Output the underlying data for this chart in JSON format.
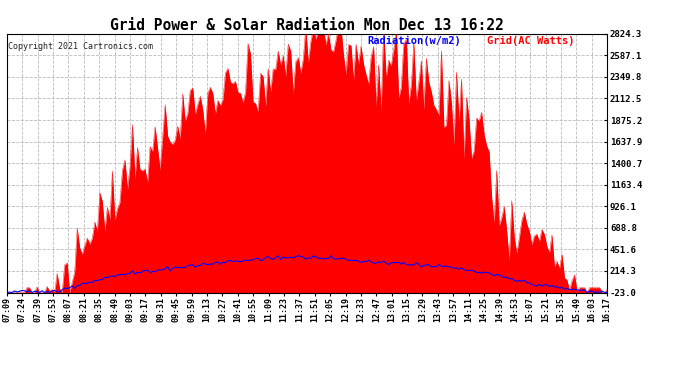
{
  "title": "Grid Power & Solar Radiation Mon Dec 13 16:22",
  "copyright": "Copyright 2021 Cartronics.com",
  "legend_radiation": "Radiation(w/m2)",
  "legend_grid": "Grid(AC Watts)",
  "yticks": [
    -23.0,
    214.3,
    451.6,
    688.8,
    926.1,
    1163.4,
    1400.7,
    1637.9,
    1875.2,
    2112.5,
    2349.8,
    2587.1,
    2824.3
  ],
  "ymin": -23.0,
  "ymax": 2824.3,
  "bg_color": "#ffffff",
  "plot_bg_color": "#ffffff",
  "grid_color": "#aaaaaa",
  "red_color": "#ff0000",
  "blue_color": "#0000ff",
  "title_color": "#000000",
  "xtick_labels": [
    "07:09",
    "07:24",
    "07:39",
    "07:53",
    "08:07",
    "08:21",
    "08:35",
    "08:49",
    "09:03",
    "09:17",
    "09:31",
    "09:45",
    "09:59",
    "10:13",
    "10:27",
    "10:41",
    "10:55",
    "11:09",
    "11:23",
    "11:37",
    "11:51",
    "12:05",
    "12:19",
    "12:33",
    "12:47",
    "13:01",
    "13:15",
    "13:29",
    "13:43",
    "13:57",
    "14:11",
    "14:25",
    "14:39",
    "14:53",
    "15:07",
    "15:21",
    "15:35",
    "15:49",
    "16:03",
    "16:17"
  ],
  "n_labels": 40,
  "pts_per_label": 6,
  "figsize": [
    6.9,
    3.75
  ],
  "dpi": 100
}
